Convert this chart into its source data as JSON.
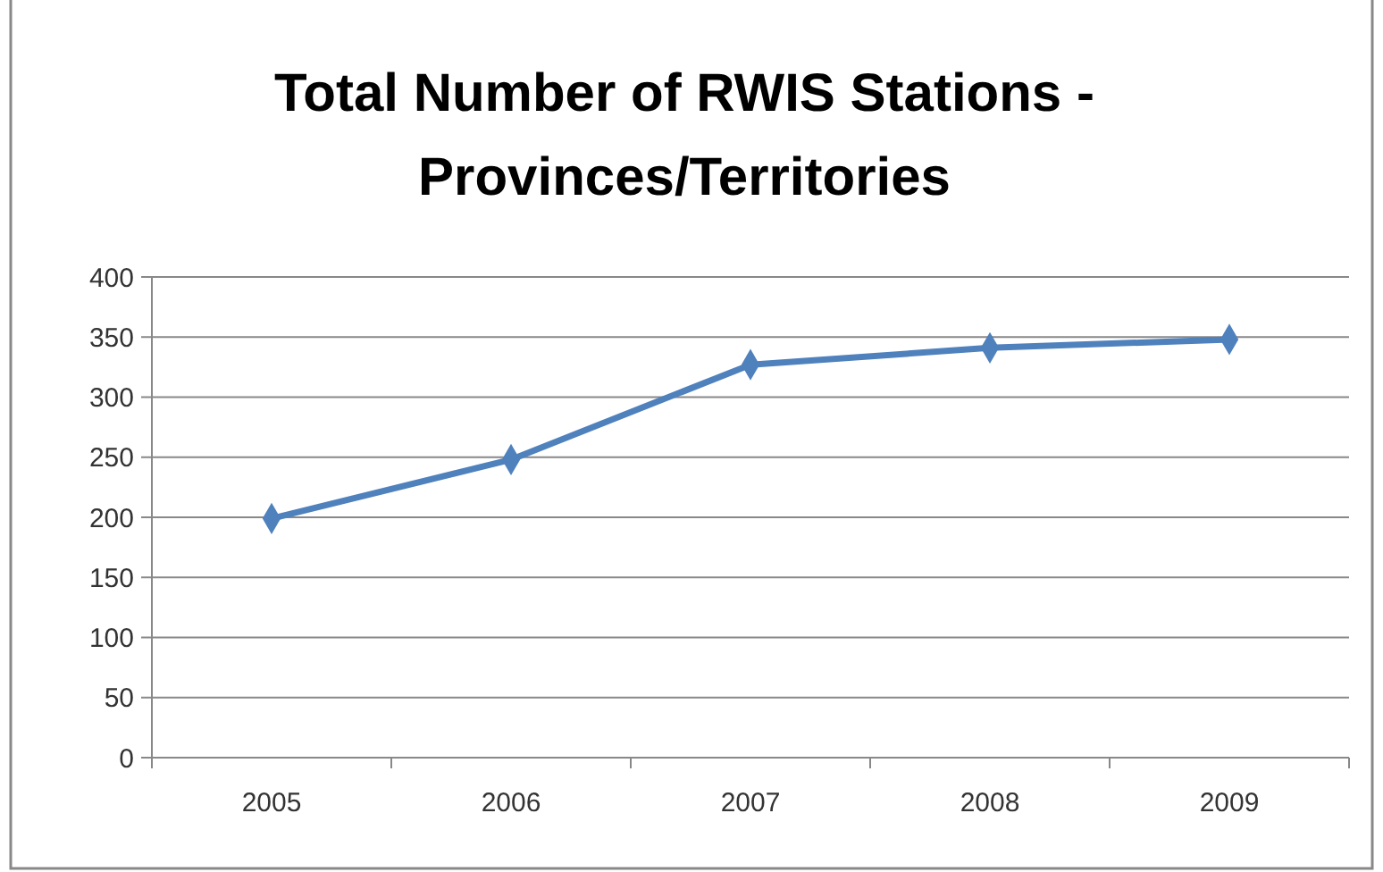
{
  "chart_data": {
    "type": "line",
    "title": "Total Number of RWIS Stations - Provinces/Territories",
    "categories": [
      "2005",
      "2006",
      "2007",
      "2008",
      "2009"
    ],
    "series": [
      {
        "color": "#4f81bd",
        "values": [
          199,
          248,
          327,
          341,
          348
        ]
      }
    ],
    "ylim": [
      0,
      400
    ],
    "yticks": [
      0,
      50,
      100,
      150,
      200,
      250,
      300,
      350,
      400
    ],
    "grid": "y",
    "marker": "diamond"
  }
}
